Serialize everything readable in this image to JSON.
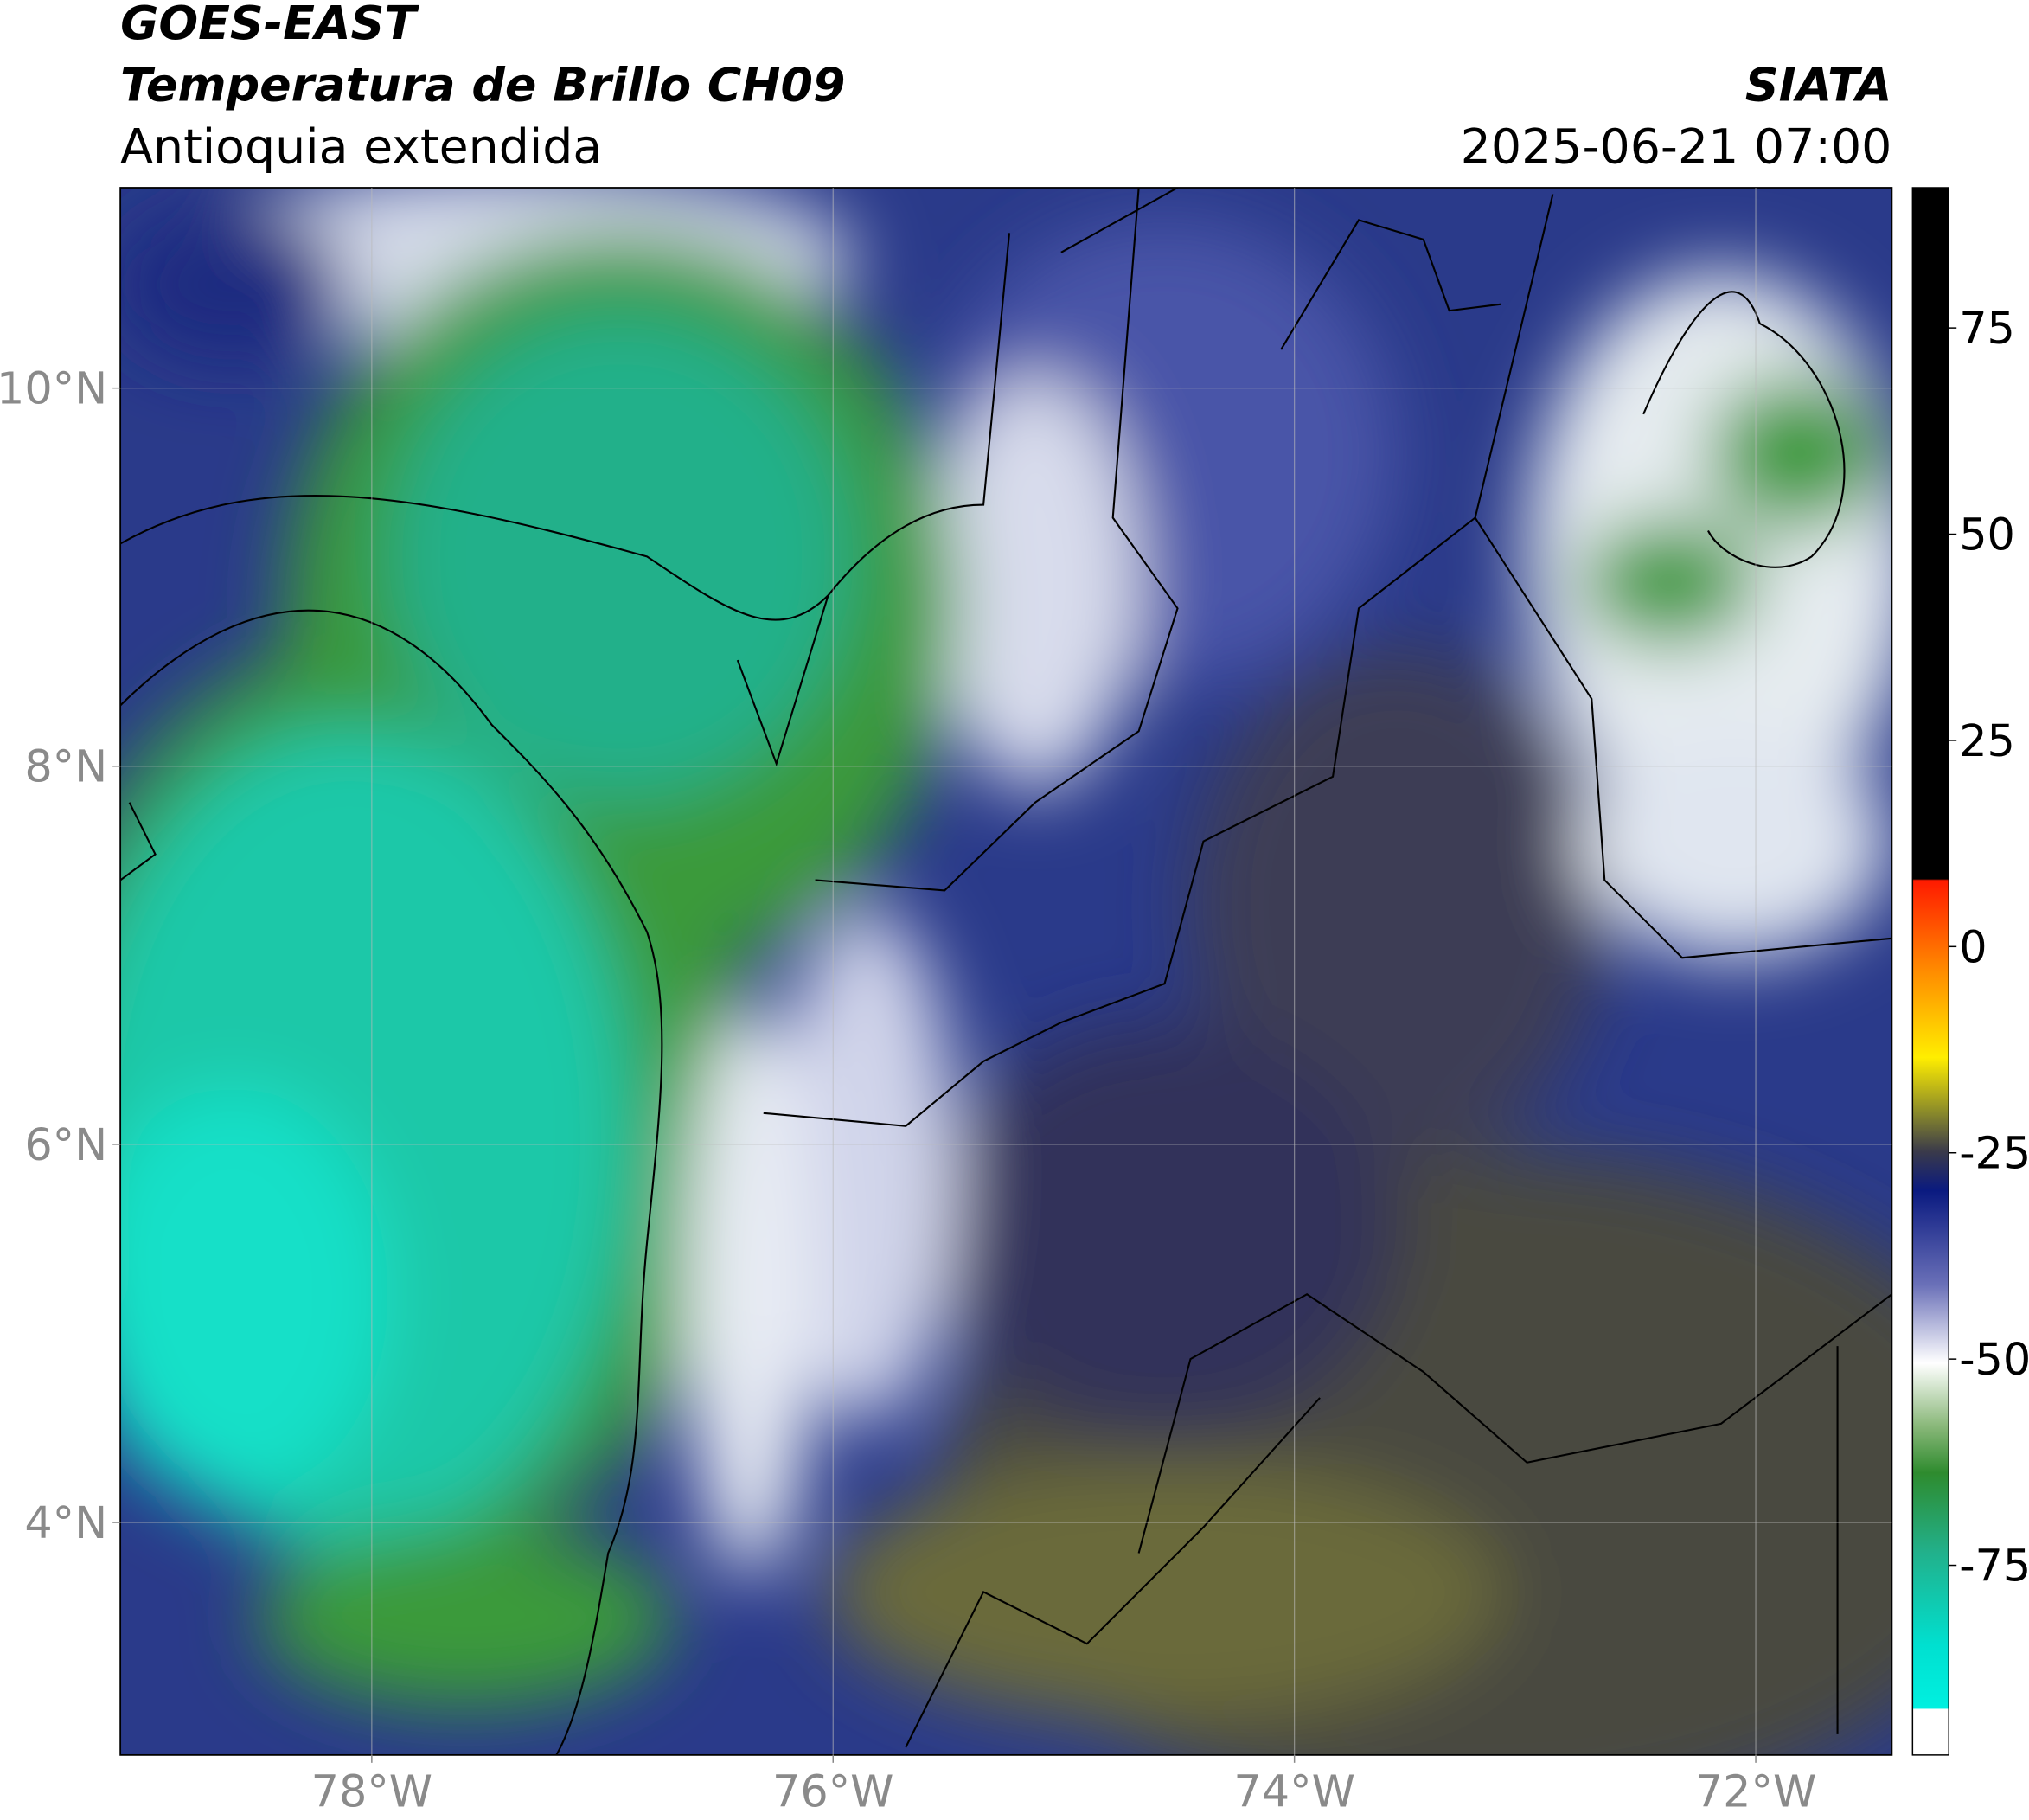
{
  "header": {
    "title": "GOES-EAST",
    "subtitle": "Temperatura de Brillo CH09",
    "region": "Antioquia extendida",
    "source": "SIATA",
    "datetime": "2025-06-21 07:00"
  },
  "map": {
    "xlim": [
      -79.09,
      -71.41
    ],
    "ylim": [
      2.77,
      11.06
    ],
    "xticks": [
      {
        "value": -78,
        "label": "78°W"
      },
      {
        "value": -76,
        "label": "76°W"
      },
      {
        "value": -74,
        "label": "74°W"
      },
      {
        "value": -72,
        "label": "72°W"
      }
    ],
    "yticks": [
      {
        "value": 4,
        "label": "4°N"
      },
      {
        "value": 6,
        "label": "6°N"
      },
      {
        "value": 8,
        "label": "8°N"
      },
      {
        "value": 10,
        "label": "10°N"
      }
    ],
    "grid": true
  },
  "colorbar": {
    "lim": [
      -98,
      92
    ],
    "ticks": [
      -75,
      -50,
      -25,
      0,
      25,
      50,
      75
    ]
  }
}
